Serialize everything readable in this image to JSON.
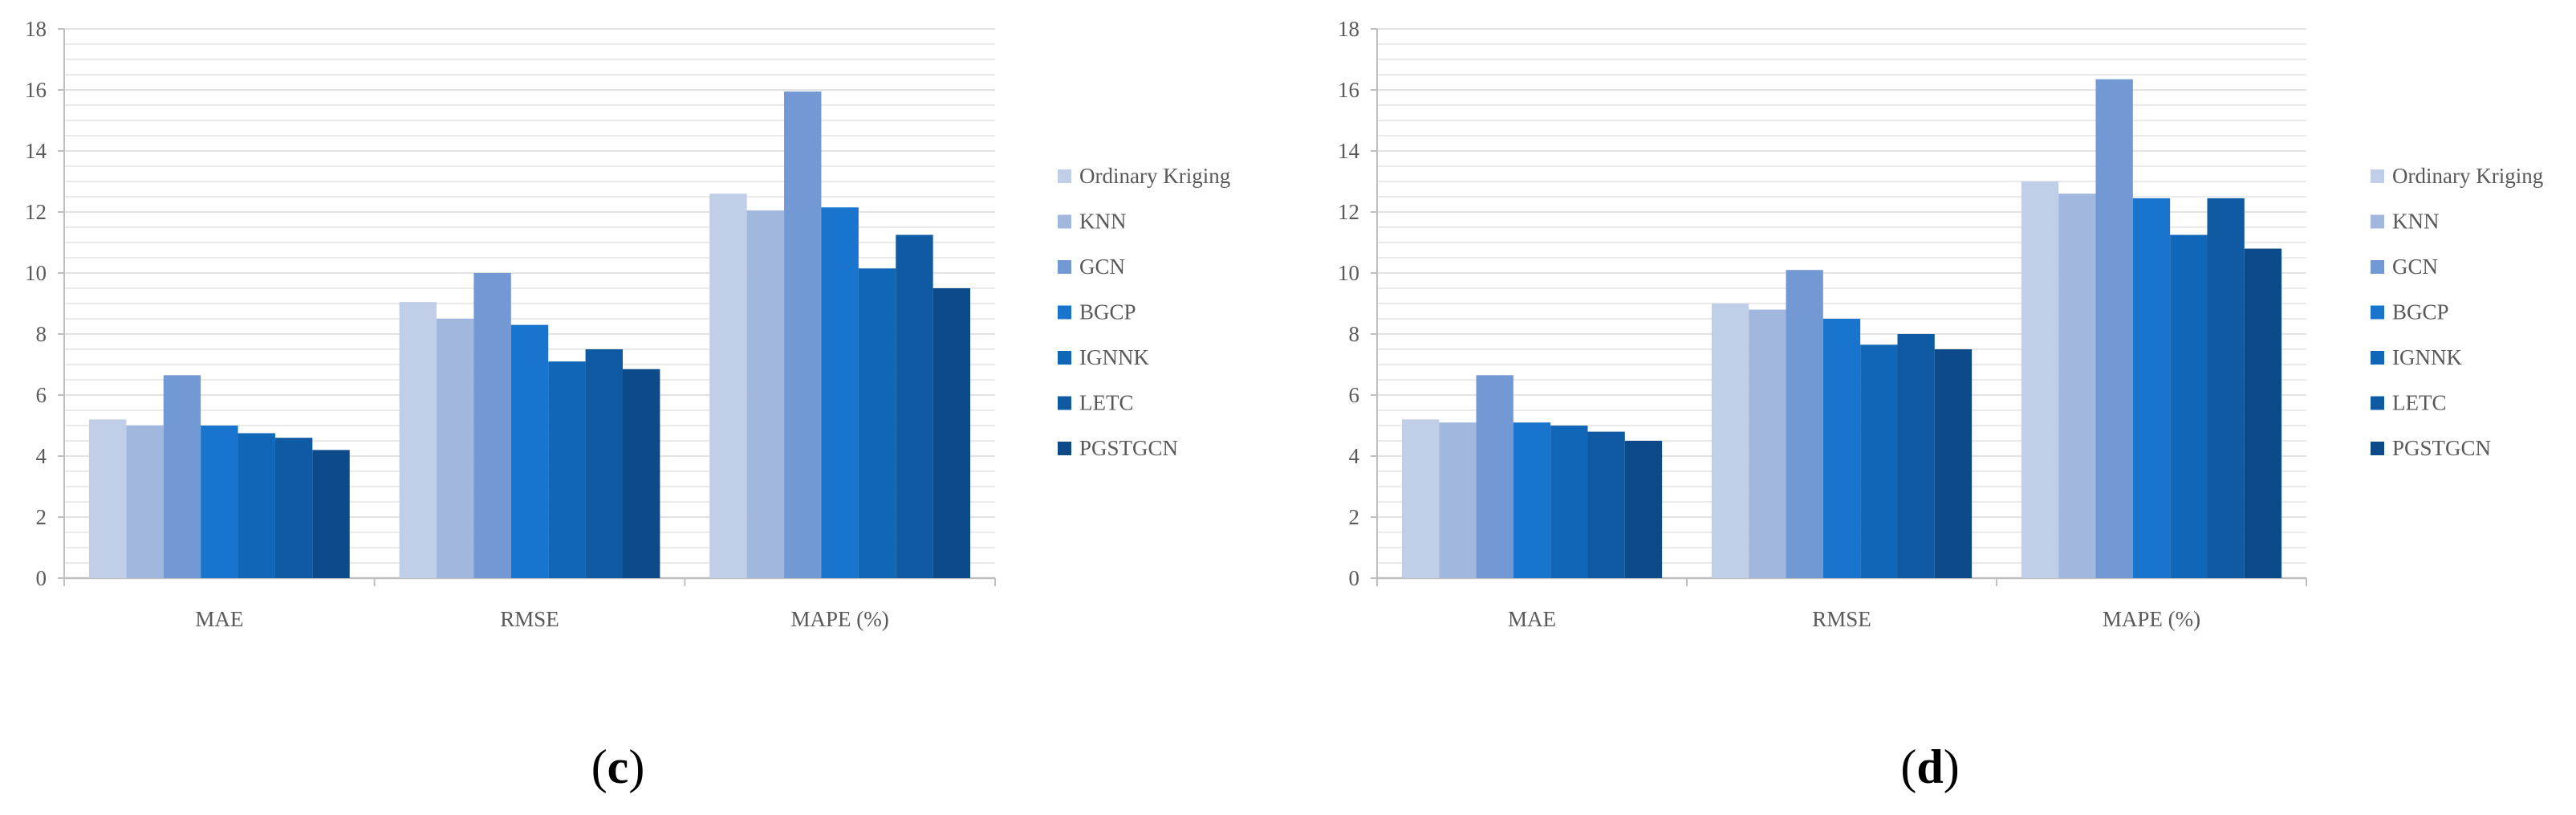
{
  "figure": {
    "panels": [
      {
        "label_open": "(",
        "label_letter": "c",
        "label_close": ")"
      },
      {
        "label_open": "(",
        "label_letter": "d",
        "label_close": ")"
      }
    ]
  },
  "colors": {
    "Ordinary Kriging": "#c0cee8",
    "KNN": "#a2b7de",
    "GCN": "#7399d4",
    "BGCP": "#1874cd",
    "IGNNK": "#1067b8",
    "LETC": "#0f5aa3",
    "PGSTGCN": "#0d4a8a",
    "axis": "#bfbfbf",
    "grid": "#e3e3e3",
    "text": "#595959"
  },
  "chart_data": [
    {
      "type": "bar",
      "title": "",
      "xlabel": "",
      "ylabel": "",
      "categories": [
        "MAE",
        "RMSE",
        "MAPE (%)"
      ],
      "ylim": [
        0,
        18
      ],
      "yticks": [
        0,
        2,
        4,
        6,
        8,
        10,
        12,
        14,
        16,
        18
      ],
      "grid": true,
      "legend_position": "right",
      "series": [
        {
          "name": "Ordinary Kriging",
          "values": [
            5.2,
            9.05,
            12.6
          ]
        },
        {
          "name": "KNN",
          "values": [
            5.0,
            8.5,
            12.05
          ]
        },
        {
          "name": "GCN",
          "values": [
            6.65,
            10.0,
            15.95
          ]
        },
        {
          "name": "BGCP",
          "values": [
            5.0,
            8.3,
            12.15
          ]
        },
        {
          "name": "IGNNK",
          "values": [
            4.75,
            7.1,
            10.15
          ]
        },
        {
          "name": "LETC",
          "values": [
            4.6,
            7.5,
            11.25
          ]
        },
        {
          "name": "PGSTGCN",
          "values": [
            4.2,
            6.85,
            9.5
          ]
        }
      ]
    },
    {
      "type": "bar",
      "title": "",
      "xlabel": "",
      "ylabel": "",
      "categories": [
        "MAE",
        "RMSE",
        "MAPE (%)"
      ],
      "ylim": [
        0,
        18
      ],
      "yticks": [
        0,
        2,
        4,
        6,
        8,
        10,
        12,
        14,
        16,
        18
      ],
      "grid": true,
      "legend_position": "right",
      "series": [
        {
          "name": "Ordinary Kriging",
          "values": [
            5.2,
            9.0,
            13.0
          ]
        },
        {
          "name": "KNN",
          "values": [
            5.1,
            8.8,
            12.6
          ]
        },
        {
          "name": "GCN",
          "values": [
            6.65,
            10.1,
            16.35
          ]
        },
        {
          "name": "BGCP",
          "values": [
            5.1,
            8.5,
            12.45
          ]
        },
        {
          "name": "IGNNK",
          "values": [
            5.0,
            7.65,
            11.25
          ]
        },
        {
          "name": "LETC",
          "values": [
            4.8,
            8.0,
            12.45
          ]
        },
        {
          "name": "PGSTGCN",
          "values": [
            4.5,
            7.5,
            10.8
          ]
        }
      ]
    }
  ]
}
